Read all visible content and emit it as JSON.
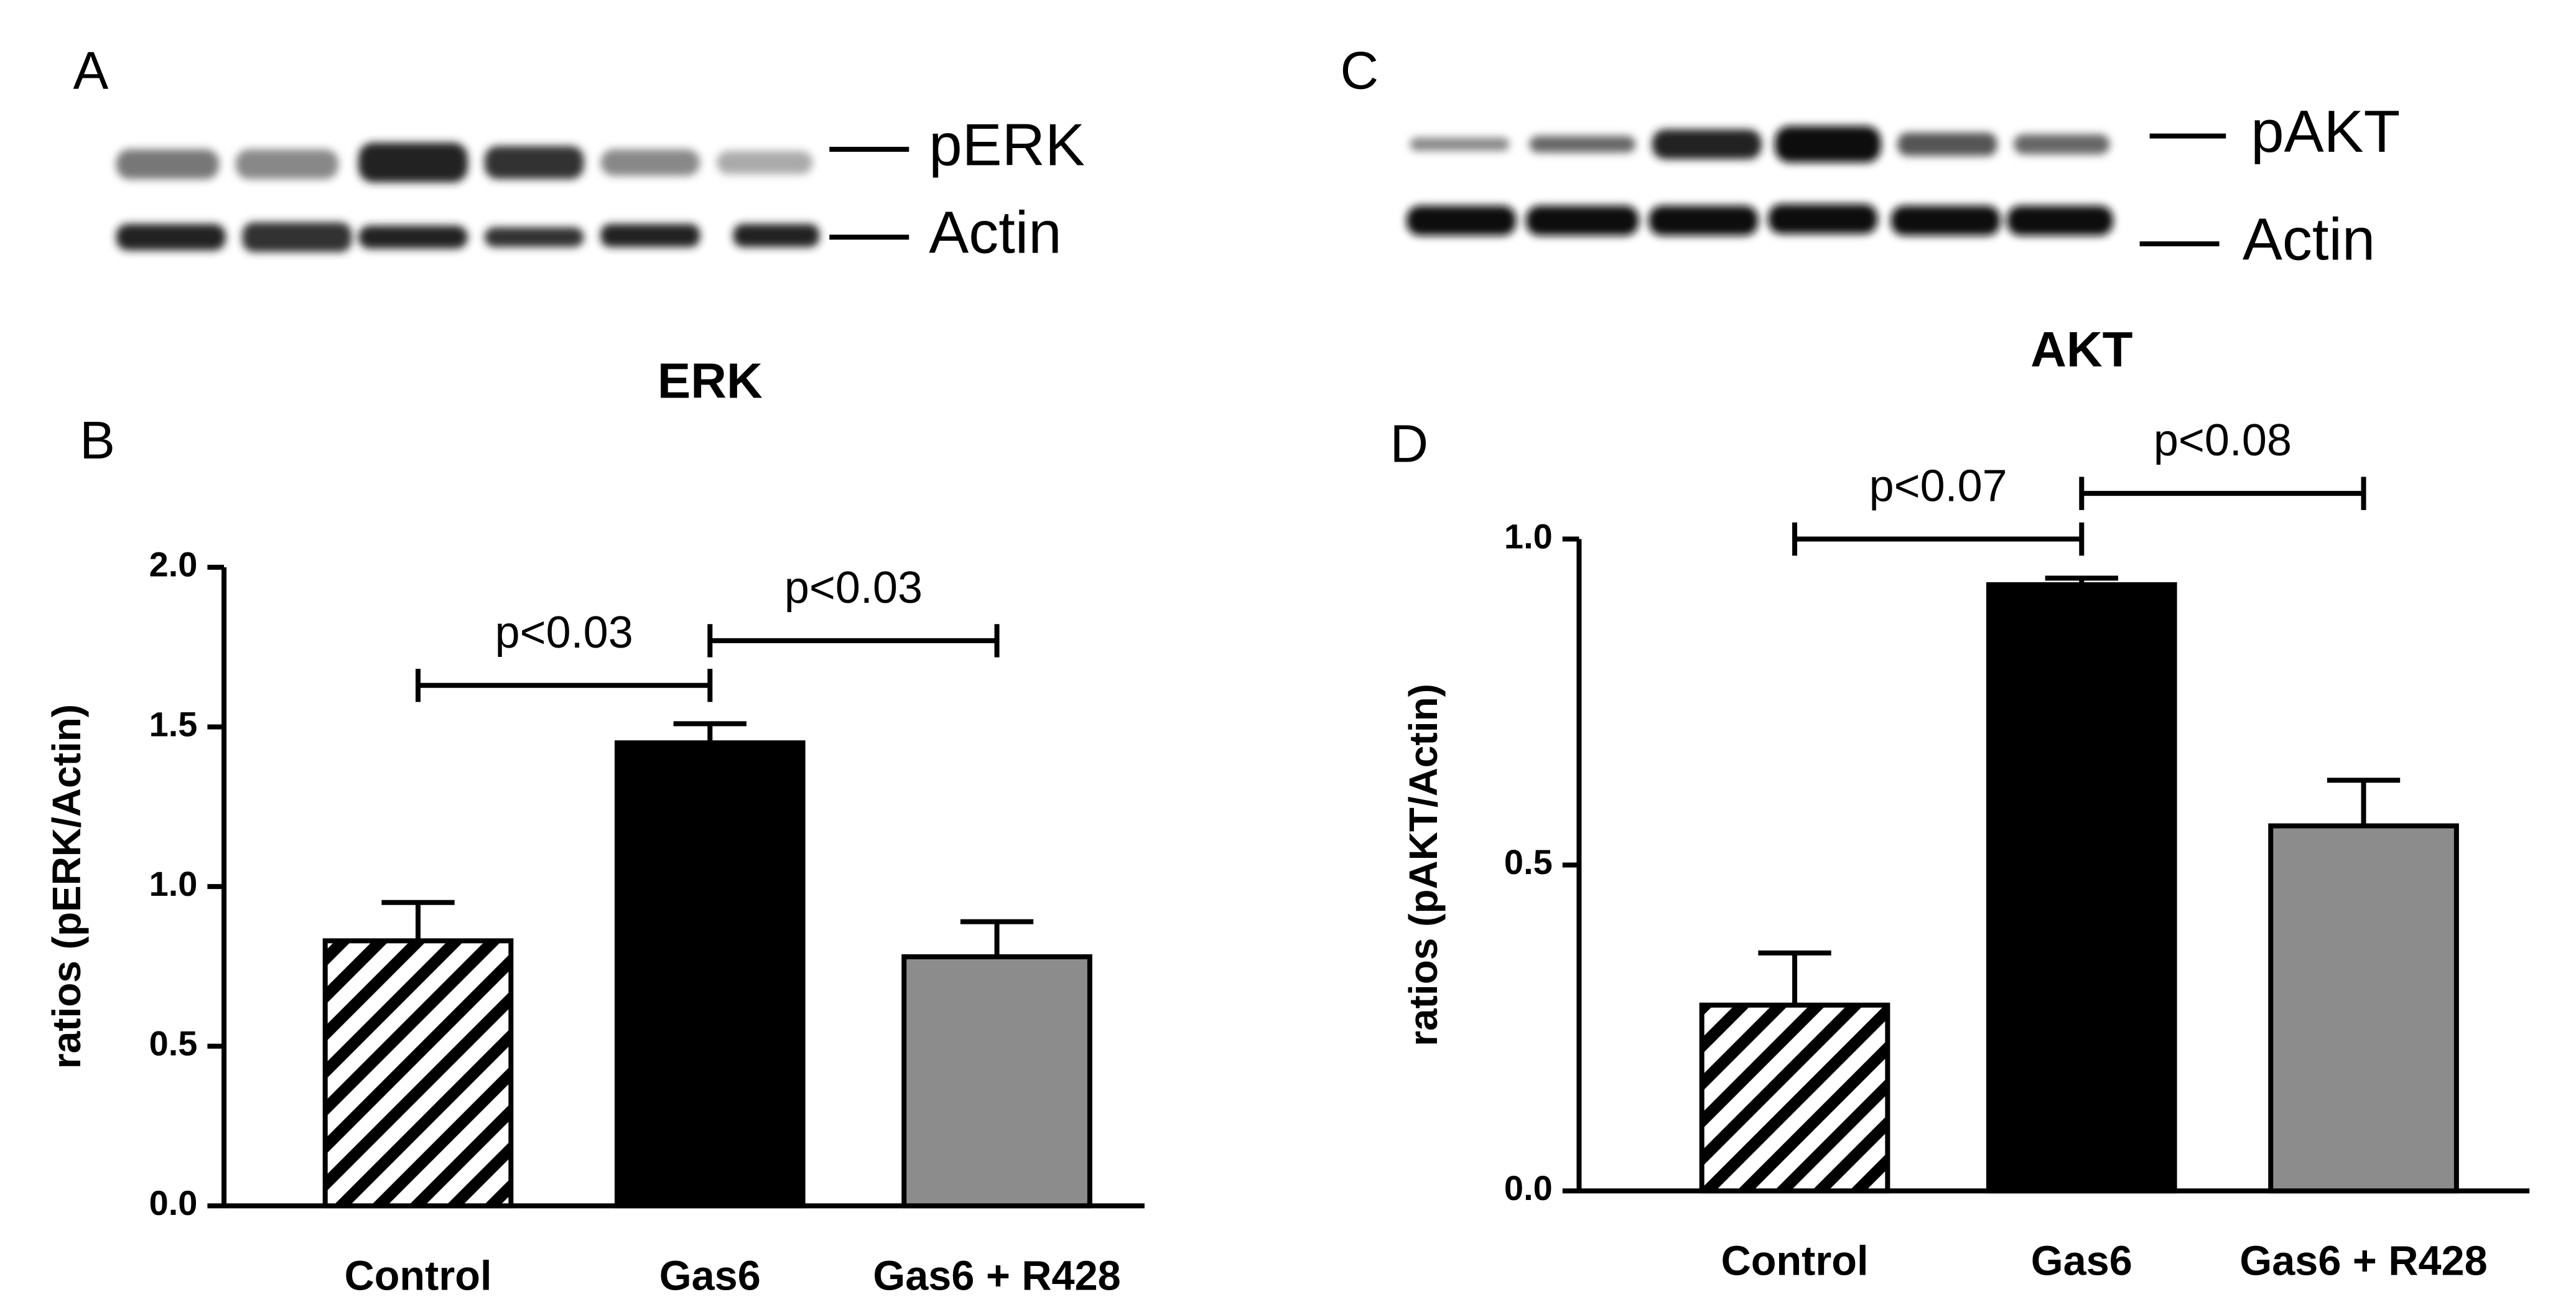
{
  "chart_data": [
    {
      "type": "bar",
      "blot_panel": "A",
      "blot_labels": [
        "pERK",
        "Actin"
      ],
      "panel": "B",
      "title": "ERK",
      "y_label": "ratios (pERK/Actin)",
      "categories": [
        "Control",
        "Gas6",
        "Gas6 + R428"
      ],
      "values": [
        0.83,
        1.45,
        0.78
      ],
      "errors": [
        0.12,
        0.06,
        0.11
      ],
      "colors": [
        "#000000",
        "#000000",
        "#8c8c8c"
      ],
      "hatched": [
        true,
        false,
        false
      ],
      "ylim": [
        0,
        2
      ],
      "yticks": [
        {
          "value": 0,
          "label": "0.0"
        },
        0.5,
        {
          "value": 1,
          "label": "1.0"
        },
        1.5,
        {
          "value": 2,
          "label": "2.0"
        }
      ],
      "annotations": [
        {
          "text": "p<0.03",
          "from": "Control",
          "to": "Gas6"
        },
        {
          "text": "p<0.03",
          "from": "Gas6",
          "to": "Gas6 + R428"
        }
      ]
    },
    {
      "type": "bar",
      "blot_panel": "C",
      "blot_labels": [
        "pAKT",
        "Actin"
      ],
      "panel": "D",
      "title": "AKT",
      "y_label": "ratios (pAKT/Actin)",
      "categories": [
        "Control",
        "Gas6",
        "Gas6 + R428"
      ],
      "values": [
        0.285,
        0.93,
        0.56
      ],
      "errors": [
        0.08,
        0.01,
        0.07
      ],
      "colors": [
        "#000000",
        "#000000",
        "#8c8c8c"
      ],
      "hatched": [
        true,
        false,
        false
      ],
      "ylim": [
        0,
        1
      ],
      "yticks": [
        {
          "value": 0,
          "label": "0.0"
        },
        0.5,
        {
          "value": 1,
          "label": "1.0"
        }
      ],
      "annotations": [
        {
          "text": "p<0.07",
          "from": "Control",
          "to": "Gas6"
        },
        {
          "text": "p<0.08",
          "from": "Gas6",
          "to": "Gas6 + R428"
        }
      ]
    }
  ]
}
